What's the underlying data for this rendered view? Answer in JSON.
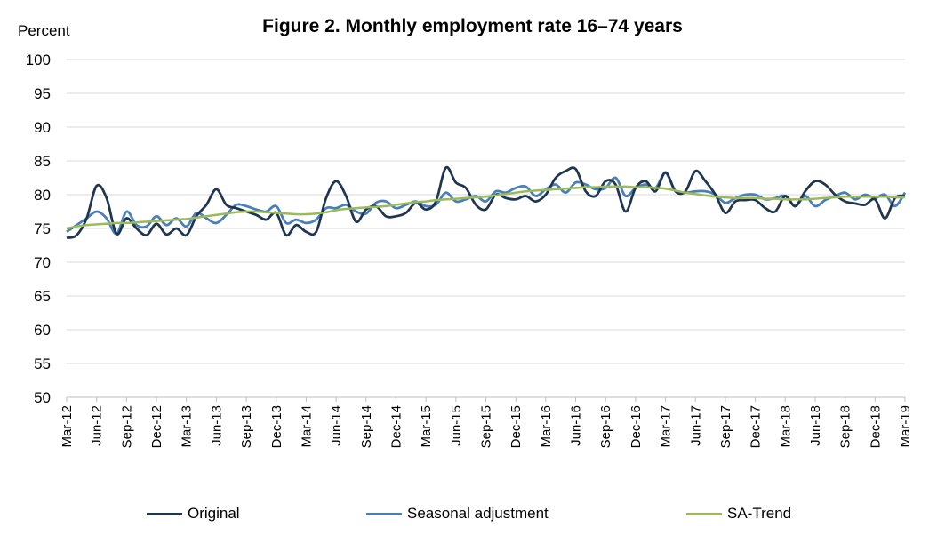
{
  "chart_data": {
    "type": "line",
    "title": "Figure 2. Monthly employment rate 16–74 years",
    "ylabel": "Percent",
    "xlabel": "",
    "ylim": [
      50,
      100
    ],
    "yticks": [
      50,
      55,
      60,
      65,
      70,
      75,
      80,
      85,
      90,
      95,
      100
    ],
    "grid": true,
    "legend_position": "bottom",
    "x": [
      "Mar-12",
      "Apr-12",
      "May-12",
      "Jun-12",
      "Jul-12",
      "Aug-12",
      "Sep-12",
      "Oct-12",
      "Nov-12",
      "Dec-12",
      "Jan-13",
      "Feb-13",
      "Mar-13",
      "Apr-13",
      "May-13",
      "Jun-13",
      "Jul-13",
      "Aug-13",
      "Sep-13",
      "Oct-13",
      "Nov-13",
      "Dec-13",
      "Jan-14",
      "Feb-14",
      "Mar-14",
      "Apr-14",
      "May-14",
      "Jun-14",
      "Jul-14",
      "Aug-14",
      "Sep-14",
      "Oct-14",
      "Nov-14",
      "Dec-14",
      "Jan-15",
      "Feb-15",
      "Mar-15",
      "Apr-15",
      "May-15",
      "Jun-15",
      "Jul-15",
      "Aug-15",
      "Sep-15",
      "Oct-15",
      "Nov-15",
      "Dec-15",
      "Jan-16",
      "Feb-16",
      "Mar-16",
      "Apr-16",
      "May-16",
      "Jun-16",
      "Jul-16",
      "Aug-16",
      "Sep-16",
      "Oct-16",
      "Nov-16",
      "Dec-16",
      "Jan-17",
      "Feb-17",
      "Mar-17",
      "Apr-17",
      "May-17",
      "Jun-17",
      "Jul-17",
      "Aug-17",
      "Sep-17",
      "Oct-17",
      "Nov-17",
      "Dec-17",
      "Jan-18",
      "Feb-18",
      "Mar-18",
      "Apr-18",
      "May-18",
      "Jun-18",
      "Jul-18",
      "Aug-18",
      "Sep-18",
      "Oct-18",
      "Nov-18",
      "Dec-18",
      "Jan-19",
      "Feb-19",
      "Mar-19"
    ],
    "xtick_labels": [
      "Mar-12",
      "Jun-12",
      "Sep-12",
      "Dec-12",
      "Mar-13",
      "Jun-13",
      "Sep-13",
      "Dec-13",
      "Mar-14",
      "Jun-14",
      "Sep-14",
      "Dec-14",
      "Mar-15",
      "Jun-15",
      "Sep-15",
      "Dec-15",
      "Mar-16",
      "Jun-16",
      "Sep-16",
      "Dec-16",
      "Mar-17",
      "Jun-17",
      "Sep-17",
      "Dec-17",
      "Mar-18",
      "Jun-18",
      "Sep-18",
      "Dec-18",
      "Mar-19"
    ],
    "series": [
      {
        "name": "Original",
        "color": "#1f3550",
        "values": [
          73.6,
          74.0,
          76.5,
          81.3,
          79.5,
          74.2,
          76.5,
          75.0,
          74.0,
          75.7,
          74.1,
          75.0,
          74.0,
          76.8,
          78.5,
          80.8,
          78.5,
          78.0,
          77.5,
          77.0,
          76.3,
          77.3,
          74.0,
          75.5,
          74.5,
          74.5,
          79.5,
          82.0,
          79.8,
          76.0,
          77.8,
          78.3,
          76.8,
          76.8,
          77.3,
          78.8,
          77.8,
          79.0,
          84.0,
          81.8,
          81.0,
          78.5,
          77.8,
          80.0,
          79.5,
          79.3,
          79.8,
          79.0,
          80.0,
          82.5,
          83.5,
          83.8,
          80.5,
          79.8,
          82.0,
          81.5,
          77.5,
          81.0,
          82.0,
          80.5,
          83.3,
          80.5,
          80.5,
          83.5,
          82.0,
          80.0,
          77.3,
          79.0,
          79.2,
          79.2,
          78.0,
          77.5,
          79.8,
          78.3,
          80.5,
          82.0,
          81.5,
          80.0,
          79.0,
          78.7,
          78.5,
          79.3,
          76.5,
          79.5,
          79.8
        ]
      },
      {
        "name": "Seasonal adjustment",
        "color": "#4a7ebb",
        "values": [
          74.5,
          75.5,
          76.5,
          77.5,
          76.5,
          74.2,
          77.5,
          75.5,
          75.3,
          76.8,
          75.5,
          76.5,
          75.3,
          77.3,
          76.5,
          75.8,
          77.0,
          78.5,
          78.3,
          77.8,
          77.5,
          78.3,
          75.8,
          76.3,
          75.8,
          76.3,
          78.0,
          78.0,
          78.5,
          77.5,
          77.2,
          78.8,
          79.0,
          78.0,
          78.5,
          79.0,
          78.3,
          78.5,
          80.3,
          79.0,
          79.3,
          79.8,
          79.0,
          80.5,
          80.3,
          81.0,
          81.2,
          79.8,
          80.8,
          81.5,
          80.3,
          81.8,
          81.5,
          80.8,
          81.0,
          82.5,
          79.8,
          81.0,
          81.5,
          81.0,
          83.2,
          80.5,
          80.3,
          80.5,
          80.5,
          80.0,
          78.8,
          79.5,
          80.0,
          80.0,
          79.3,
          79.5,
          79.8,
          78.3,
          79.8,
          78.3,
          79.2,
          79.8,
          80.3,
          79.3,
          80.0,
          79.5,
          80.0,
          78.3,
          80.3
        ]
      },
      {
        "name": "SA-Trend",
        "color": "#9bbb59",
        "values": [
          75.0,
          75.3,
          75.5,
          75.6,
          75.7,
          75.8,
          75.8,
          75.9,
          76.0,
          76.1,
          76.2,
          76.3,
          76.4,
          76.6,
          76.8,
          77.0,
          77.2,
          77.4,
          77.5,
          77.5,
          77.4,
          77.3,
          77.2,
          77.1,
          77.1,
          77.2,
          77.4,
          77.7,
          77.9,
          78.0,
          78.1,
          78.2,
          78.3,
          78.5,
          78.7,
          78.9,
          79.0,
          79.2,
          79.3,
          79.4,
          79.5,
          79.6,
          79.7,
          79.9,
          80.1,
          80.3,
          80.5,
          80.6,
          80.7,
          80.8,
          80.9,
          81.0,
          81.1,
          81.1,
          81.2,
          81.2,
          81.2,
          81.1,
          81.1,
          81.0,
          80.9,
          80.6,
          80.3,
          80.1,
          79.9,
          79.7,
          79.6,
          79.5,
          79.5,
          79.5,
          79.4,
          79.4,
          79.3,
          79.3,
          79.3,
          79.4,
          79.5,
          79.6,
          79.7,
          79.7,
          79.7,
          79.7,
          79.7,
          79.6,
          79.6
        ]
      }
    ]
  }
}
